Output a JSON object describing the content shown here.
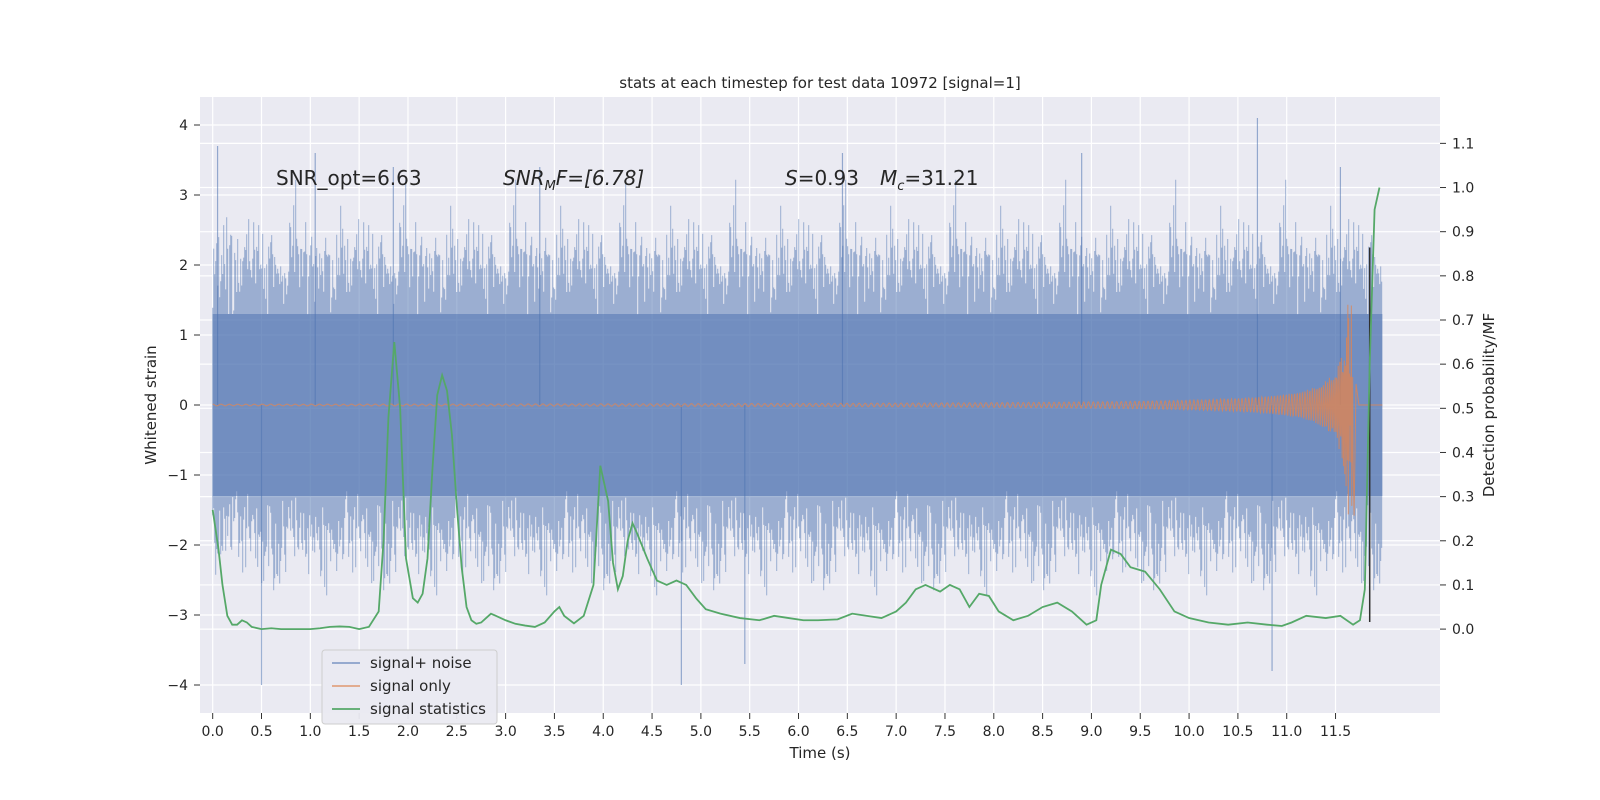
{
  "chart_data": {
    "type": "line",
    "title": "stats at each timestep for test data 10972 [signal=1]",
    "xlabel": "Time (s)",
    "ylabel": "Whitened strain",
    "y2label": "Detection probability/MF",
    "xlim": [
      -0.13,
      12.57
    ],
    "ylim": [
      -4.4,
      4.4
    ],
    "y2lim": [
      -0.19,
      1.205
    ],
    "xticks": [
      0.0,
      0.5,
      1.0,
      1.5,
      2.0,
      2.5,
      3.0,
      3.5,
      4.0,
      4.5,
      5.0,
      5.5,
      6.0,
      6.5,
      7.0,
      7.5,
      8.0,
      8.5,
      9.0,
      9.5,
      10.0,
      10.5,
      11.0,
      11.5
    ],
    "xtick_labels": [
      "0.0",
      "0.5",
      "1.0",
      "1.5",
      "2.0",
      "2.5",
      "3.0",
      "3.5",
      "4.0",
      "4.5",
      "5.0",
      "5.5",
      "6.0",
      "6.5",
      "7.0",
      "7.5",
      "8.0",
      "8.5",
      "9.0",
      "9.5",
      "10.0",
      "10.5",
      "11.0",
      "11.5"
    ],
    "yticks": [
      -4,
      -3,
      -2,
      -1,
      0,
      1,
      2,
      3,
      4
    ],
    "ytick_labels": [
      "−4",
      "−3",
      "−2",
      "−1",
      "0",
      "1",
      "2",
      "3",
      "4"
    ],
    "y2ticks": [
      0.0,
      0.1,
      0.2,
      0.3,
      0.4,
      0.5,
      0.6,
      0.7,
      0.8,
      0.9,
      1.0,
      1.1
    ],
    "y2tick_labels": [
      "0.0",
      "0.1",
      "0.2",
      "0.3",
      "0.4",
      "0.5",
      "0.6",
      "0.7",
      "0.8",
      "0.9",
      "1.0",
      "1.1"
    ],
    "grid": true,
    "legend_position": "bottom-left",
    "annotations": {
      "snr_opt": "SNR_opt=6.63",
      "snr_mf": {
        "base": "SNR",
        "sub": "M",
        "tail": "F=[6.78]"
      },
      "s_val": {
        "sym": "S",
        "tail": "=0.93"
      },
      "mc_val": {
        "sym": "M",
        "sub": "c",
        "tail": "=31.21"
      }
    },
    "series": [
      {
        "name": "signal+ noise",
        "color": "#4c72b0",
        "axis": "left",
        "kind": "noise",
        "t_start": 0.0,
        "t_end": 11.98,
        "core_band": [
          -1.3,
          1.3
        ],
        "typical_envelope": [
          -2.2,
          2.3
        ],
        "extreme_peaks": [
          {
            "x": 0.05,
            "y": 3.7
          },
          {
            "x": 0.5,
            "y": -4.0
          },
          {
            "x": 1.05,
            "y": 3.6
          },
          {
            "x": 1.85,
            "y": 3.4
          },
          {
            "x": 4.8,
            "y": -4.0
          },
          {
            "x": 5.45,
            "y": -3.7
          },
          {
            "x": 10.7,
            "y": 4.1
          },
          {
            "x": 10.85,
            "y": -3.8
          },
          {
            "x": 11.55,
            "y": 3.4
          },
          {
            "x": 6.45,
            "y": 3.6
          },
          {
            "x": 3.35,
            "y": 3.4
          },
          {
            "x": 8.9,
            "y": 3.6
          }
        ]
      },
      {
        "name": "signal only",
        "color": "#dd8452",
        "axis": "left",
        "kind": "chirp",
        "t_start": 0.0,
        "t_merger": 11.68,
        "peak_amplitude": 1.6,
        "ringdown_min": -1.58
      },
      {
        "name": "signal statistics",
        "color": "#55a868",
        "axis": "right",
        "x": [
          0.0,
          0.06,
          0.1,
          0.15,
          0.2,
          0.25,
          0.3,
          0.35,
          0.4,
          0.5,
          0.6,
          0.7,
          0.8,
          0.9,
          1.0,
          1.1,
          1.2,
          1.3,
          1.4,
          1.5,
          1.6,
          1.7,
          1.75,
          1.8,
          1.86,
          1.92,
          1.98,
          2.05,
          2.1,
          2.15,
          2.2,
          2.25,
          2.3,
          2.35,
          2.4,
          2.45,
          2.5,
          2.55,
          2.6,
          2.65,
          2.7,
          2.75,
          2.8,
          2.85,
          2.9,
          3.0,
          3.1,
          3.2,
          3.3,
          3.4,
          3.5,
          3.55,
          3.6,
          3.7,
          3.8,
          3.9,
          3.97,
          4.05,
          4.1,
          4.15,
          4.2,
          4.25,
          4.3,
          4.35,
          4.45,
          4.55,
          4.65,
          4.75,
          4.85,
          4.95,
          5.05,
          5.2,
          5.4,
          5.6,
          5.75,
          5.9,
          6.05,
          6.2,
          6.4,
          6.55,
          6.7,
          6.85,
          7.0,
          7.1,
          7.2,
          7.3,
          7.45,
          7.55,
          7.65,
          7.75,
          7.85,
          7.95,
          8.05,
          8.2,
          8.35,
          8.5,
          8.65,
          8.8,
          8.95,
          9.05,
          9.1,
          9.2,
          9.3,
          9.4,
          9.55,
          9.7,
          9.85,
          10.0,
          10.2,
          10.4,
          10.6,
          10.8,
          10.95,
          11.05,
          11.2,
          11.4,
          11.55,
          11.68,
          11.75,
          11.8,
          11.85,
          11.9,
          11.95
        ],
        "values": [
          0.27,
          0.18,
          0.1,
          0.03,
          0.01,
          0.01,
          0.02,
          0.015,
          0.005,
          0.0,
          0.002,
          0.0,
          0.0,
          0.0,
          0.0,
          0.002,
          0.005,
          0.006,
          0.005,
          0.0,
          0.005,
          0.04,
          0.2,
          0.48,
          0.65,
          0.5,
          0.16,
          0.07,
          0.06,
          0.08,
          0.16,
          0.36,
          0.53,
          0.575,
          0.54,
          0.44,
          0.28,
          0.14,
          0.05,
          0.02,
          0.012,
          0.015,
          0.025,
          0.035,
          0.03,
          0.02,
          0.012,
          0.008,
          0.005,
          0.015,
          0.04,
          0.05,
          0.03,
          0.013,
          0.03,
          0.1,
          0.37,
          0.29,
          0.15,
          0.09,
          0.12,
          0.2,
          0.24,
          0.215,
          0.16,
          0.11,
          0.1,
          0.11,
          0.1,
          0.07,
          0.045,
          0.035,
          0.025,
          0.02,
          0.03,
          0.025,
          0.02,
          0.02,
          0.022,
          0.035,
          0.03,
          0.025,
          0.04,
          0.06,
          0.09,
          0.1,
          0.085,
          0.1,
          0.09,
          0.05,
          0.08,
          0.075,
          0.04,
          0.02,
          0.03,
          0.05,
          0.06,
          0.04,
          0.01,
          0.02,
          0.1,
          0.18,
          0.17,
          0.14,
          0.13,
          0.09,
          0.04,
          0.025,
          0.015,
          0.01,
          0.015,
          0.01,
          0.007,
          0.015,
          0.03,
          0.025,
          0.03,
          0.01,
          0.02,
          0.09,
          0.6,
          0.95,
          1.0
        ]
      }
    ],
    "vertical_marker": {
      "x": 11.85,
      "color": "#2f2f2f",
      "y_from": -3.1,
      "y_to": 2.25
    }
  }
}
